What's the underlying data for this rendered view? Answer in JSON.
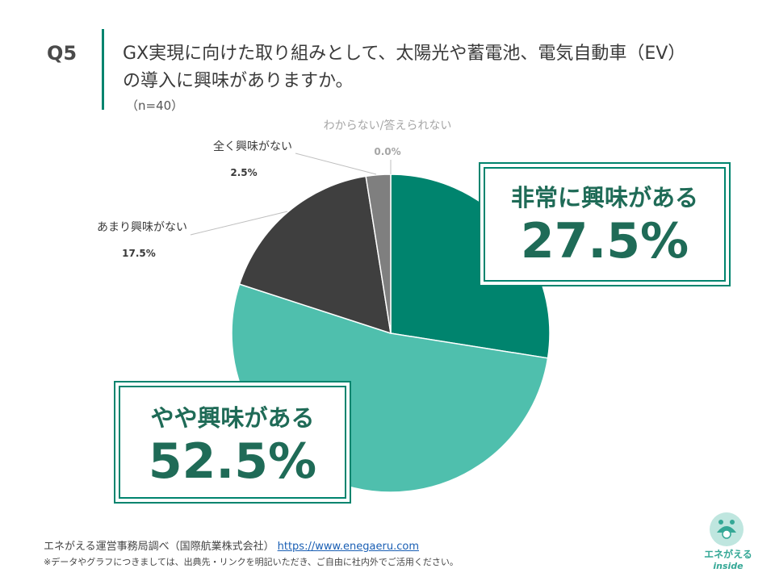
{
  "question": {
    "number": "Q5",
    "line1": "GX実現に向けた取り組みとして、太陽光や蓄電池、電気自動車（EV）",
    "line2": "の導入に興味がありますか。",
    "n": "（n=40）"
  },
  "chart_data": {
    "type": "pie",
    "start": "12 o'clock",
    "direction": "clockwise",
    "slices": [
      {
        "label": "非常に興味がある",
        "value": 27.5,
        "value_label": "27.5%",
        "color": "#00846e"
      },
      {
        "label": "やや興味がある",
        "value": 52.5,
        "value_label": "52.5%",
        "color": "#4fbfad"
      },
      {
        "label": "あまり興味がない",
        "value": 17.5,
        "value_label": "17.5%",
        "color": "#3f3f3f"
      },
      {
        "label": "全く興味がない",
        "value": 2.5,
        "value_label": "2.5%",
        "color": "#7f7f7f"
      },
      {
        "label": "わからない/答えられない",
        "value": 0.0,
        "value_label": "0.0%",
        "color": "#bfbfbf"
      }
    ]
  },
  "colors": {
    "accent": "#00846e",
    "label_dark": "#3a3a3a",
    "label_gray": "#a6a6a6",
    "leader_line": "#bfbfbf"
  },
  "footer": {
    "source": "エネがえる運営事務局調べ（国際航業株式会社）",
    "url": "https://www.enegaeru.com",
    "note": "※データやグラフにつきましては、出典先・リンクを明記いただき、ご自由に社内外でご活用ください。"
  },
  "logo": {
    "name": "エネがえる",
    "sub": "inside"
  }
}
